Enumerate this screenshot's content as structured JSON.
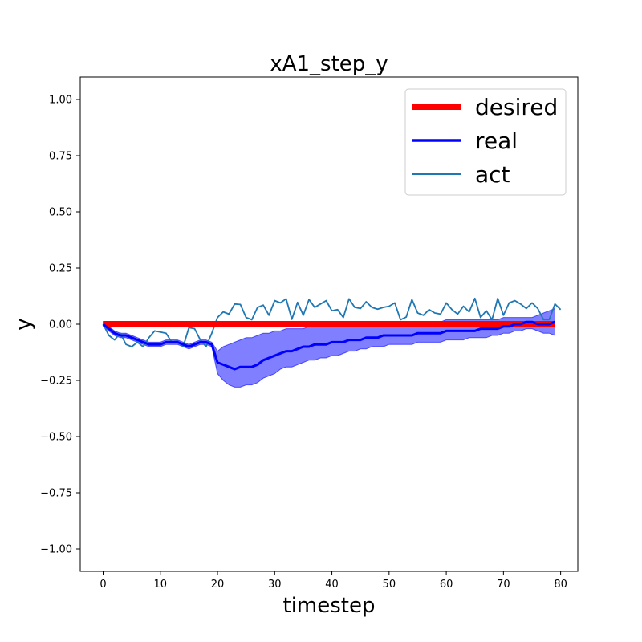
{
  "chart_data": {
    "type": "line",
    "title": "xA1_step_y",
    "xlabel": "timestep",
    "ylabel": "y",
    "xlim": [
      -4,
      83
    ],
    "ylim": [
      -1.1,
      1.1
    ],
    "xticks": [
      0,
      10,
      20,
      30,
      40,
      50,
      60,
      70,
      80
    ],
    "yticks": [
      -1.0,
      -0.75,
      -0.5,
      -0.25,
      0.0,
      0.25,
      0.5,
      0.75,
      1.0
    ],
    "xtick_labels": [
      "0",
      "10",
      "20",
      "30",
      "40",
      "50",
      "60",
      "70",
      "80"
    ],
    "ytick_labels": [
      "−1.00",
      "−0.75",
      "−0.50",
      "−0.25",
      "0.00",
      "0.25",
      "0.50",
      "0.75",
      "1.00"
    ],
    "grid": false,
    "legend_position": "top-right",
    "series": [
      {
        "name": "desired",
        "color": "#ff0000",
        "x": [
          0,
          79
        ],
        "values": [
          0.0,
          0.0
        ]
      },
      {
        "name": "real",
        "color": "#0000ff",
        "values": [
          0.0,
          -0.02,
          -0.04,
          -0.05,
          -0.05,
          -0.06,
          -0.07,
          -0.08,
          -0.09,
          -0.09,
          -0.09,
          -0.08,
          -0.08,
          -0.08,
          -0.09,
          -0.1,
          -0.09,
          -0.08,
          -0.08,
          -0.09,
          -0.17,
          -0.18,
          -0.19,
          -0.2,
          -0.19,
          -0.19,
          -0.19,
          -0.18,
          -0.16,
          -0.15,
          -0.14,
          -0.13,
          -0.12,
          -0.12,
          -0.11,
          -0.1,
          -0.1,
          -0.09,
          -0.09,
          -0.09,
          -0.08,
          -0.08,
          -0.08,
          -0.07,
          -0.07,
          -0.07,
          -0.06,
          -0.06,
          -0.06,
          -0.05,
          -0.05,
          -0.05,
          -0.05,
          -0.05,
          -0.05,
          -0.04,
          -0.04,
          -0.04,
          -0.04,
          -0.04,
          -0.03,
          -0.03,
          -0.03,
          -0.03,
          -0.03,
          -0.03,
          -0.02,
          -0.02,
          -0.02,
          -0.02,
          -0.01,
          -0.01,
          0.0,
          0.0,
          0.01,
          0.01,
          0.0,
          0.0,
          0.0,
          0.01
        ],
        "band_upper": [
          0.01,
          -0.01,
          -0.03,
          -0.04,
          -0.04,
          -0.05,
          -0.06,
          -0.07,
          -0.08,
          -0.08,
          -0.08,
          -0.07,
          -0.07,
          -0.07,
          -0.08,
          -0.09,
          -0.08,
          -0.07,
          -0.07,
          -0.08,
          -0.12,
          -0.1,
          -0.09,
          -0.08,
          -0.07,
          -0.06,
          -0.06,
          -0.05,
          -0.04,
          -0.04,
          -0.03,
          -0.03,
          -0.02,
          -0.02,
          -0.02,
          -0.02,
          -0.01,
          -0.01,
          -0.01,
          -0.01,
          -0.01,
          -0.01,
          -0.01,
          -0.01,
          -0.01,
          0.0,
          0.0,
          0.0,
          0.0,
          0.0,
          0.0,
          0.0,
          0.0,
          0.0,
          0.01,
          0.01,
          0.01,
          0.01,
          0.01,
          0.01,
          0.02,
          0.02,
          0.02,
          0.02,
          0.02,
          0.02,
          0.02,
          0.02,
          0.02,
          0.02,
          0.03,
          0.03,
          0.03,
          0.03,
          0.03,
          0.03,
          0.04,
          0.05,
          0.06,
          0.07
        ],
        "band_lower": [
          -0.01,
          -0.03,
          -0.05,
          -0.06,
          -0.06,
          -0.07,
          -0.08,
          -0.09,
          -0.1,
          -0.1,
          -0.1,
          -0.09,
          -0.09,
          -0.09,
          -0.1,
          -0.11,
          -0.1,
          -0.09,
          -0.09,
          -0.1,
          -0.22,
          -0.25,
          -0.27,
          -0.28,
          -0.28,
          -0.27,
          -0.27,
          -0.26,
          -0.24,
          -0.23,
          -0.22,
          -0.2,
          -0.19,
          -0.19,
          -0.18,
          -0.17,
          -0.16,
          -0.16,
          -0.15,
          -0.15,
          -0.14,
          -0.14,
          -0.13,
          -0.12,
          -0.12,
          -0.11,
          -0.11,
          -0.1,
          -0.1,
          -0.1,
          -0.09,
          -0.09,
          -0.09,
          -0.09,
          -0.09,
          -0.08,
          -0.08,
          -0.08,
          -0.08,
          -0.08,
          -0.07,
          -0.07,
          -0.07,
          -0.07,
          -0.06,
          -0.06,
          -0.06,
          -0.06,
          -0.05,
          -0.05,
          -0.04,
          -0.04,
          -0.03,
          -0.03,
          -0.02,
          -0.02,
          -0.03,
          -0.04,
          -0.04,
          -0.05
        ],
        "band_color": "#0000ff"
      },
      {
        "name": "act",
        "color": "#1f77b4",
        "values": [
          0.0,
          -0.05,
          -0.07,
          -0.04,
          -0.09,
          -0.1,
          -0.08,
          -0.1,
          -0.06,
          -0.03,
          -0.035,
          -0.04,
          -0.08,
          -0.075,
          -0.1,
          -0.015,
          -0.02,
          -0.07,
          -0.1,
          -0.04,
          0.03,
          0.055,
          0.045,
          0.09,
          0.088,
          0.03,
          0.02,
          0.075,
          0.085,
          0.04,
          0.105,
          0.095,
          0.113,
          0.022,
          0.097,
          0.04,
          0.11,
          0.075,
          0.09,
          0.105,
          0.06,
          0.065,
          0.03,
          0.113,
          0.075,
          0.07,
          0.1,
          0.075,
          0.067,
          0.075,
          0.08,
          0.095,
          0.02,
          0.032,
          0.11,
          0.05,
          0.04,
          0.065,
          0.05,
          0.045,
          0.095,
          0.065,
          0.045,
          0.08,
          0.055,
          0.115,
          0.03,
          0.06,
          0.02,
          0.115,
          0.04,
          0.095,
          0.105,
          0.09,
          0.07,
          0.095,
          0.07,
          0.02,
          0.02,
          0.09,
          0.065
        ]
      }
    ]
  }
}
